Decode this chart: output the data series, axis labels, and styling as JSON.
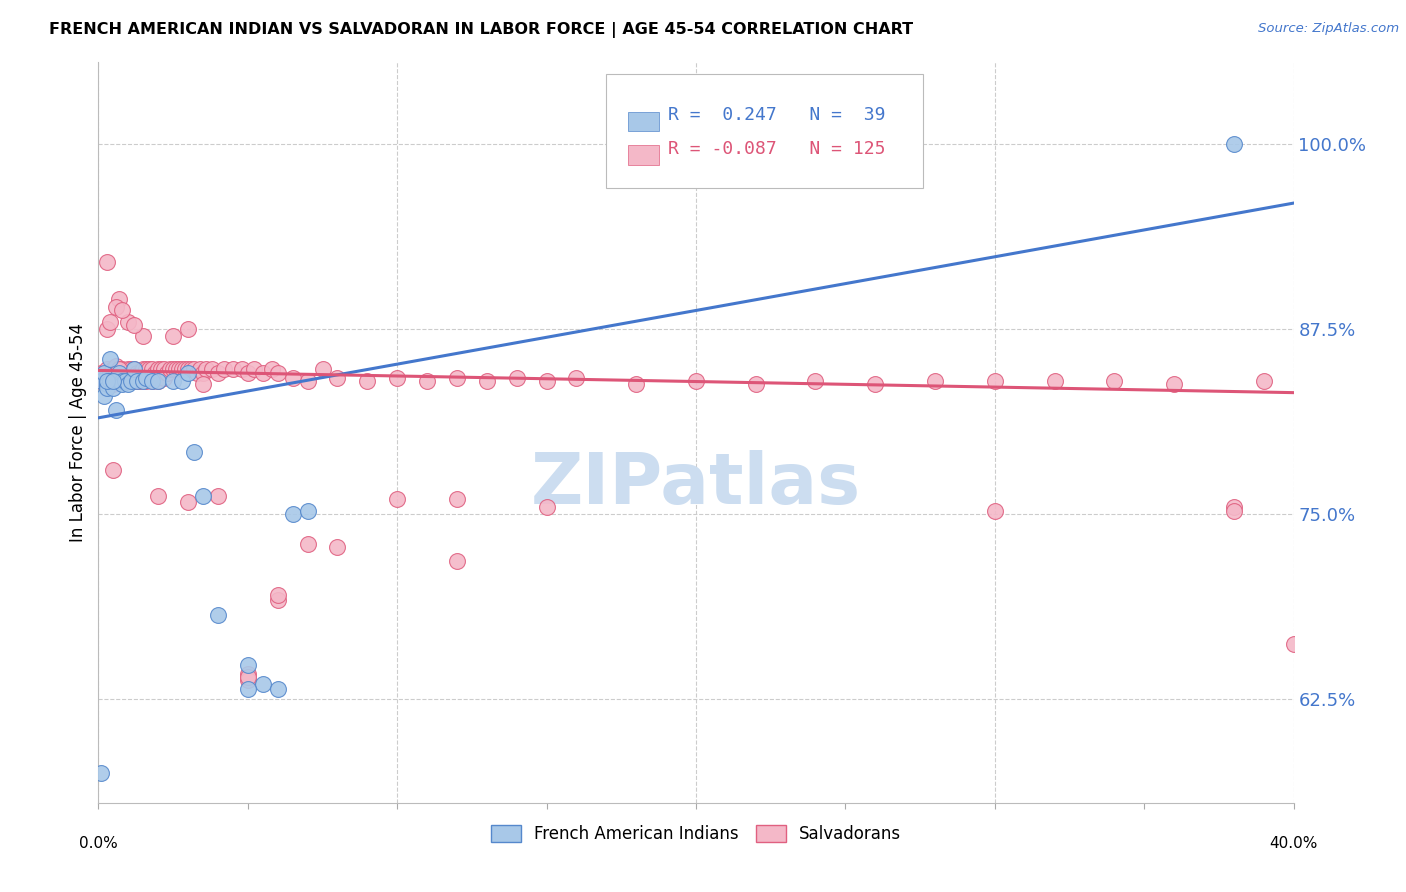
{
  "title": "FRENCH AMERICAN INDIAN VS SALVADORAN IN LABOR FORCE | AGE 45-54 CORRELATION CHART",
  "source": "Source: ZipAtlas.com",
  "ylabel": "In Labor Force | Age 45-54",
  "ytick_values": [
    0.625,
    0.75,
    0.875,
    1.0
  ],
  "ytick_labels": [
    "62.5%",
    "75.0%",
    "87.5%",
    "100.0%"
  ],
  "xlim": [
    0.0,
    0.4
  ],
  "ylim": [
    0.555,
    1.055
  ],
  "legend_R_blue": "0.247",
  "legend_N_blue": "39",
  "legend_R_pink": "-0.087",
  "legend_N_pink": "125",
  "blue_fill": "#a8c8e8",
  "blue_edge": "#5588cc",
  "pink_fill": "#f4b8c8",
  "pink_edge": "#e06080",
  "blue_line_color": "#4477cc",
  "pink_line_color": "#dd5577",
  "watermark_color": "#ccddf0",
  "blue_label": "French American Indians",
  "pink_label": "Salvadorans",
  "blue_trend_x": [
    0.0,
    0.4
  ],
  "blue_trend_y": [
    0.815,
    0.96
  ],
  "pink_trend_x": [
    0.0,
    0.4
  ],
  "pink_trend_y": [
    0.847,
    0.832
  ],
  "blue_x": [
    0.001,
    0.001,
    0.002,
    0.002,
    0.003,
    0.003,
    0.004,
    0.004,
    0.005,
    0.005,
    0.006,
    0.007,
    0.007,
    0.008,
    0.008,
    0.009,
    0.01,
    0.011,
    0.012,
    0.013,
    0.015,
    0.016,
    0.018,
    0.02,
    0.025,
    0.028,
    0.03,
    0.032,
    0.035,
    0.04,
    0.05,
    0.055,
    0.06,
    0.065,
    0.07,
    0.38,
    0.003,
    0.005,
    0.05
  ],
  "blue_y": [
    0.84,
    0.575,
    0.83,
    0.845,
    0.838,
    0.835,
    0.84,
    0.855,
    0.84,
    0.835,
    0.82,
    0.84,
    0.845,
    0.84,
    0.838,
    0.84,
    0.838,
    0.84,
    0.848,
    0.84,
    0.84,
    0.842,
    0.84,
    0.84,
    0.84,
    0.84,
    0.845,
    0.792,
    0.762,
    0.682,
    0.648,
    0.635,
    0.632,
    0.75,
    0.752,
    1.0,
    0.84,
    0.84,
    0.632
  ],
  "pink_x": [
    0.001,
    0.001,
    0.002,
    0.002,
    0.003,
    0.003,
    0.003,
    0.004,
    0.004,
    0.005,
    0.005,
    0.005,
    0.006,
    0.006,
    0.007,
    0.007,
    0.008,
    0.008,
    0.009,
    0.009,
    0.01,
    0.01,
    0.011,
    0.011,
    0.012,
    0.012,
    0.013,
    0.013,
    0.014,
    0.014,
    0.015,
    0.015,
    0.016,
    0.016,
    0.017,
    0.017,
    0.018,
    0.018,
    0.019,
    0.02,
    0.02,
    0.021,
    0.022,
    0.022,
    0.023,
    0.024,
    0.025,
    0.026,
    0.027,
    0.028,
    0.029,
    0.03,
    0.031,
    0.032,
    0.033,
    0.034,
    0.035,
    0.036,
    0.038,
    0.04,
    0.042,
    0.045,
    0.048,
    0.05,
    0.052,
    0.055,
    0.058,
    0.06,
    0.065,
    0.07,
    0.075,
    0.08,
    0.09,
    0.1,
    0.11,
    0.12,
    0.13,
    0.14,
    0.15,
    0.16,
    0.18,
    0.2,
    0.22,
    0.24,
    0.26,
    0.28,
    0.3,
    0.32,
    0.34,
    0.36,
    0.38,
    0.39,
    0.4,
    0.003,
    0.005,
    0.007,
    0.01,
    0.015,
    0.025,
    0.03,
    0.04,
    0.05,
    0.06,
    0.08,
    0.1,
    0.12,
    0.05,
    0.015,
    0.003,
    0.004,
    0.006,
    0.008,
    0.012,
    0.02,
    0.03,
    0.06,
    0.15,
    0.3,
    0.38,
    0.05,
    0.009,
    0.007,
    0.035,
    0.07,
    0.12
  ],
  "pink_y": [
    0.845,
    0.84,
    0.845,
    0.84,
    0.848,
    0.842,
    0.838,
    0.845,
    0.84,
    0.848,
    0.842,
    0.838,
    0.85,
    0.842,
    0.848,
    0.84,
    0.848,
    0.842,
    0.845,
    0.84,
    0.848,
    0.842,
    0.848,
    0.842,
    0.848,
    0.84,
    0.845,
    0.84,
    0.845,
    0.84,
    0.848,
    0.84,
    0.848,
    0.84,
    0.848,
    0.842,
    0.848,
    0.84,
    0.845,
    0.848,
    0.84,
    0.848,
    0.848,
    0.842,
    0.845,
    0.848,
    0.848,
    0.848,
    0.848,
    0.848,
    0.848,
    0.848,
    0.848,
    0.848,
    0.845,
    0.848,
    0.845,
    0.848,
    0.848,
    0.845,
    0.848,
    0.848,
    0.848,
    0.845,
    0.848,
    0.845,
    0.848,
    0.845,
    0.842,
    0.84,
    0.848,
    0.842,
    0.84,
    0.842,
    0.84,
    0.842,
    0.84,
    0.842,
    0.84,
    0.842,
    0.838,
    0.84,
    0.838,
    0.84,
    0.838,
    0.84,
    0.84,
    0.84,
    0.84,
    0.838,
    0.755,
    0.84,
    0.662,
    0.92,
    0.78,
    0.895,
    0.88,
    0.87,
    0.87,
    0.875,
    0.762,
    0.642,
    0.692,
    0.728,
    0.76,
    0.76,
    0.638,
    0.84,
    0.875,
    0.88,
    0.89,
    0.888,
    0.878,
    0.762,
    0.758,
    0.695,
    0.755,
    0.752,
    0.752,
    0.64,
    0.84,
    0.848,
    0.838,
    0.73,
    0.718
  ]
}
